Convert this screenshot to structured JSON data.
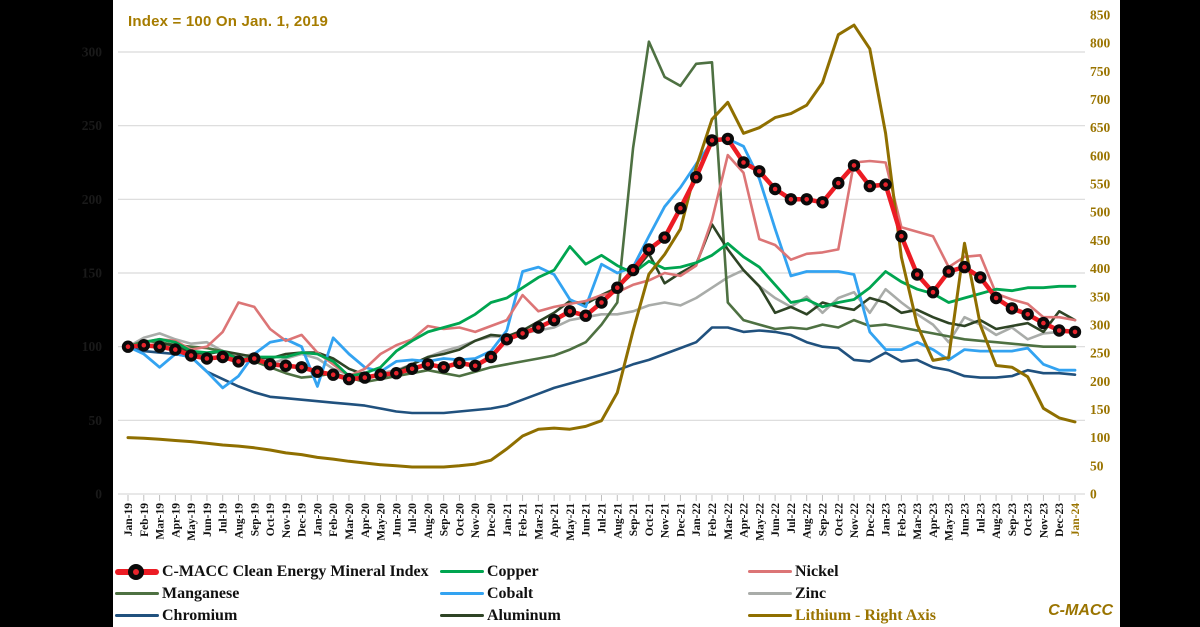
{
  "title": {
    "text": "Index = 100 On Jan. 1, 2019",
    "color": "#A67C00"
  },
  "watermark": {
    "text": "C-MACC",
    "color": "#9A7400"
  },
  "colors": {
    "panel_bg": "#FFFFFF",
    "page_bg": "#000000",
    "grid": "#D9D9D9",
    "left_axis_text": "#1A1A1A",
    "right_axis_text": "#9A7400",
    "gold_accent": "#9A7400"
  },
  "chart_data": {
    "type": "line",
    "title": "Index = 100 On Jan. 1, 2019",
    "grid": true,
    "legend_position": "bottom",
    "left_axis": {
      "ticks": [
        300,
        250,
        200,
        150,
        100,
        50,
        0
      ],
      "range": [
        0,
        300
      ]
    },
    "right_axis": {
      "ticks": [
        850,
        800,
        750,
        700,
        650,
        600,
        550,
        500,
        450,
        400,
        350,
        300,
        250,
        200,
        150,
        100,
        50,
        0
      ],
      "range": [
        0,
        850
      ]
    },
    "x_axis": {
      "label_color": "#111111",
      "last_label_color": "#9A7400",
      "labels": [
        "Jan-19",
        "Feb-19",
        "Mar-19",
        "Apr-19",
        "May-19",
        "Jun-19",
        "Jul-19",
        "Aug-19",
        "Sep-19",
        "Oct-19",
        "Nov-19",
        "Dec-19",
        "Jan-20",
        "Feb-20",
        "Mar-20",
        "Apr-20",
        "May-20",
        "Jun-20",
        "Jul-20",
        "Aug-20",
        "Sep-20",
        "Oct-20",
        "Nov-20",
        "Dec-20",
        "Jan-21",
        "Feb-21",
        "Mar-21",
        "Apr-21",
        "May-21",
        "Jun-21",
        "Jul-21",
        "Aug-21",
        "Sep-21",
        "Oct-21",
        "Nov-21",
        "Dec-21",
        "Jan-22",
        "Feb-22",
        "Mar-22",
        "Apr-22",
        "May-22",
        "Jun-22",
        "Jul-22",
        "Aug-22",
        "Sep-22",
        "Oct-22",
        "Nov-22",
        "Dec-22",
        "Jan-23",
        "Feb-23",
        "Mar-23",
        "Apr-23",
        "May-23",
        "Jun-23",
        "Jul-23",
        "Aug-23",
        "Sep-23",
        "Oct-23",
        "Nov-23",
        "Dec-23",
        "Jan-24"
      ]
    },
    "series": [
      {
        "id": "cmacc-index",
        "name": "C-MACC Clean Energy Mineral Index",
        "axis": "left",
        "color": "#EC1C24",
        "marker": "black-circle-red-dot",
        "width": 4.5,
        "z": 9,
        "values": [
          100,
          101,
          100,
          98,
          94,
          92,
          93,
          90,
          92,
          88,
          87,
          86,
          83,
          81,
          78,
          79,
          81,
          82,
          85,
          88,
          86,
          89,
          87,
          93,
          105,
          109,
          113,
          118,
          124,
          121,
          130,
          140,
          152,
          166,
          174,
          194,
          215,
          240,
          241,
          225,
          219,
          207,
          200,
          200,
          198,
          211,
          223,
          209,
          210,
          175,
          149,
          137,
          151,
          154,
          147,
          133,
          126,
          122,
          116,
          111,
          110
        ]
      },
      {
        "id": "manganese",
        "name": "Manganese",
        "axis": "left",
        "color": "#4E7142",
        "width": 2.6,
        "z": 3,
        "values": [
          100,
          104,
          103,
          101,
          100,
          99,
          97,
          92,
          90,
          86,
          82,
          79,
          80,
          82,
          79,
          76,
          78,
          80,
          82,
          84,
          82,
          80,
          83,
          86,
          88,
          90,
          92,
          94,
          98,
          103,
          115,
          130,
          235,
          307,
          283,
          277,
          292,
          293,
          130,
          118,
          115,
          112,
          113,
          112,
          115,
          113,
          118,
          114,
          115,
          113,
          111,
          109,
          107,
          105,
          104,
          103,
          102,
          101,
          100,
          100,
          100
        ]
      },
      {
        "id": "chromium",
        "name": "Chromium",
        "axis": "left",
        "color": "#20517E",
        "width": 2.6,
        "z": 1,
        "values": [
          100,
          97,
          96,
          95,
          93,
          83,
          78,
          73,
          69,
          66,
          65,
          64,
          63,
          62,
          61,
          60,
          58,
          56,
          55,
          55,
          55,
          56,
          57,
          58,
          60,
          64,
          68,
          72,
          75,
          78,
          81,
          84,
          88,
          91,
          95,
          99,
          103,
          113,
          113,
          110,
          111,
          110,
          108,
          103,
          100,
          99,
          91,
          90,
          96,
          90,
          91,
          86,
          84,
          80,
          79,
          79,
          80,
          84,
          82,
          82,
          81
        ]
      },
      {
        "id": "copper",
        "name": "Copper",
        "axis": "left",
        "color": "#00A550",
        "width": 2.8,
        "z": 7,
        "values": [
          100,
          103,
          105,
          103,
          97,
          96,
          97,
          91,
          93,
          93,
          93,
          96,
          95,
          90,
          80,
          82,
          86,
          97,
          104,
          110,
          113,
          116,
          122,
          130,
          133,
          140,
          147,
          152,
          168,
          156,
          162,
          155,
          150,
          158,
          153,
          154,
          157,
          162,
          170,
          161,
          154,
          142,
          130,
          132,
          127,
          130,
          132,
          140,
          151,
          144,
          139,
          136,
          130,
          133,
          136,
          139,
          138,
          140,
          140,
          141,
          141
        ]
      },
      {
        "id": "cobalt",
        "name": "Cobalt",
        "axis": "left",
        "color": "#33A3F1",
        "width": 2.8,
        "z": 5,
        "values": [
          100,
          95,
          86,
          95,
          93,
          83,
          72,
          80,
          95,
          103,
          105,
          100,
          73,
          106,
          95,
          86,
          83,
          90,
          91,
          90,
          92,
          91,
          92,
          97,
          111,
          151,
          154,
          149,
          132,
          127,
          156,
          150,
          154,
          175,
          195,
          208,
          224,
          239,
          241,
          236,
          214,
          180,
          148,
          151,
          151,
          151,
          149,
          110,
          98,
          98,
          103,
          98,
          91,
          98,
          97,
          97,
          97,
          99,
          88,
          84,
          84
        ]
      },
      {
        "id": "aluminum",
        "name": "Aluminum",
        "axis": "left",
        "color": "#2E4425",
        "width": 2.6,
        "z": 4,
        "values": [
          100,
          100,
          102,
          101,
          96,
          95,
          97,
          95,
          93,
          92,
          95,
          96,
          96,
          92,
          85,
          81,
          79,
          83,
          88,
          93,
          95,
          98,
          104,
          108,
          107,
          111,
          117,
          123,
          131,
          129,
          135,
          140,
          150,
          163,
          143,
          150,
          156,
          183,
          166,
          152,
          141,
          123,
          127,
          122,
          130,
          127,
          125,
          133,
          130,
          123,
          125,
          120,
          116,
          114,
          118,
          112,
          114,
          116,
          110,
          124,
          118
        ]
      },
      {
        "id": "nickel",
        "name": "Nickel",
        "axis": "left",
        "color": "#DC7576",
        "width": 2.6,
        "z": 6,
        "values": [
          100,
          103,
          105,
          104,
          98,
          100,
          110,
          130,
          127,
          112,
          104,
          108,
          96,
          88,
          80,
          85,
          95,
          101,
          105,
          114,
          112,
          113,
          110,
          114,
          118,
          135,
          124,
          127,
          129,
          131,
          135,
          137,
          142,
          145,
          150,
          148,
          155,
          186,
          230,
          218,
          173,
          169,
          159,
          163,
          164,
          166,
          225,
          226,
          225,
          181,
          178,
          175,
          154,
          161,
          162,
          136,
          132,
          129,
          120,
          120,
          118
        ]
      },
      {
        "id": "zinc",
        "name": "Zinc",
        "axis": "left",
        "color": "#A9ACA9",
        "width": 2.6,
        "z": 2,
        "values": [
          100,
          106,
          109,
          105,
          102,
          103,
          97,
          93,
          95,
          88,
          92,
          95,
          92,
          85,
          81,
          78,
          82,
          84,
          88,
          93,
          97,
          100,
          104,
          107,
          107,
          109,
          111,
          113,
          118,
          120,
          122,
          122,
          124,
          128,
          130,
          128,
          133,
          140,
          147,
          152,
          141,
          133,
          127,
          134,
          123,
          133,
          137,
          123,
          139,
          130,
          122,
          115,
          103,
          120,
          115,
          108,
          113,
          105,
          109,
          110,
          111
        ]
      },
      {
        "id": "lithium",
        "name": "Lithium - Right Axis",
        "axis": "right",
        "color": "#8F6F00",
        "label_color": "#9A7400",
        "width": 3,
        "z": 8,
        "values": [
          100,
          99,
          97,
          95,
          93,
          90,
          87,
          85,
          82,
          78,
          73,
          70,
          65,
          62,
          58,
          55,
          52,
          50,
          48,
          48,
          48,
          50,
          53,
          60,
          80,
          103,
          115,
          117,
          115,
          120,
          130,
          180,
          290,
          390,
          425,
          470,
          580,
          665,
          695,
          640,
          650,
          668,
          675,
          690,
          730,
          815,
          832,
          790,
          640,
          420,
          300,
          237,
          242,
          445,
          300,
          228,
          225,
          208,
          152,
          135,
          128
        ]
      }
    ]
  }
}
